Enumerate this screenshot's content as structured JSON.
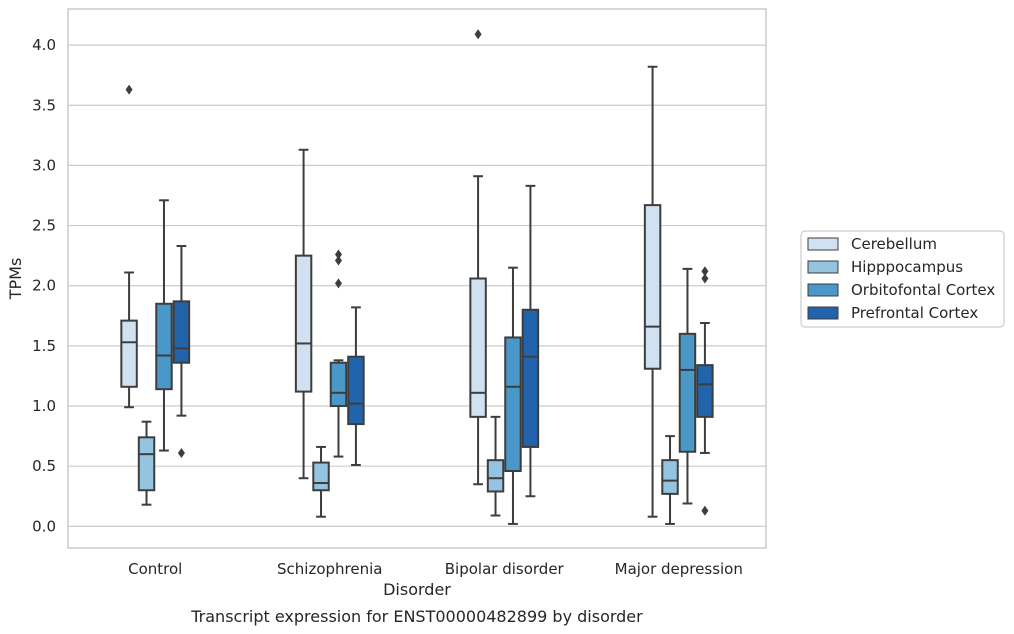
{
  "chart_data": {
    "type": "box",
    "caption": "Transcript expression for ENST00000482899 by disorder",
    "xlabel": "Disorder",
    "ylabel": "TPMs",
    "ylim": [
      -0.18,
      4.3
    ],
    "yticks": [
      "0.0",
      "0.5",
      "1.0",
      "1.5",
      "2.0",
      "2.5",
      "3.0",
      "3.5",
      "4.0"
    ],
    "grid": "horizontal",
    "legend_position": "right",
    "categories": [
      "Control",
      "Schizophrenia",
      "Bipolar disorder",
      "Major depression"
    ],
    "series": [
      {
        "name": "Cerebellum",
        "color": "#d0e1f2",
        "boxes": [
          {
            "min": 0.99,
            "q1": 1.16,
            "median": 1.53,
            "q3": 1.71,
            "max": 2.11,
            "outliers": [
              3.63
            ]
          },
          {
            "min": 0.4,
            "q1": 1.12,
            "median": 1.52,
            "q3": 2.25,
            "max": 3.13,
            "outliers": []
          },
          {
            "min": 0.35,
            "q1": 0.91,
            "median": 1.11,
            "q3": 2.06,
            "max": 2.91,
            "outliers": [
              4.09
            ]
          },
          {
            "min": 0.08,
            "q1": 1.31,
            "median": 1.66,
            "q3": 2.67,
            "max": 3.82,
            "outliers": []
          }
        ]
      },
      {
        "name": "Hipppocampus",
        "color": "#94c4df",
        "boxes": [
          {
            "min": 0.18,
            "q1": 0.3,
            "median": 0.6,
            "q3": 0.74,
            "max": 0.87,
            "outliers": []
          },
          {
            "min": 0.08,
            "q1": 0.3,
            "median": 0.36,
            "q3": 0.53,
            "max": 0.66,
            "outliers": []
          },
          {
            "min": 0.09,
            "q1": 0.29,
            "median": 0.4,
            "q3": 0.55,
            "max": 0.91,
            "outliers": []
          },
          {
            "min": 0.02,
            "q1": 0.27,
            "median": 0.38,
            "q3": 0.55,
            "max": 0.75,
            "outliers": []
          }
        ]
      },
      {
        "name": "Orbitofontal Cortex",
        "color": "#4a98c9",
        "boxes": [
          {
            "min": 0.63,
            "q1": 1.14,
            "median": 1.42,
            "q3": 1.85,
            "max": 2.71,
            "outliers": []
          },
          {
            "min": 0.58,
            "q1": 1.0,
            "median": 1.11,
            "q3": 1.36,
            "max": 1.38,
            "outliers": [
              2.02,
              2.21,
              2.26
            ]
          },
          {
            "min": 0.02,
            "q1": 0.46,
            "median": 1.16,
            "q3": 1.57,
            "max": 2.15,
            "outliers": []
          },
          {
            "min": 0.19,
            "q1": 0.62,
            "median": 1.3,
            "q3": 1.6,
            "max": 2.14,
            "outliers": []
          }
        ]
      },
      {
        "name": "Prefrontal Cortex",
        "color": "#2164ab",
        "boxes": [
          {
            "min": 0.92,
            "q1": 1.36,
            "median": 1.48,
            "q3": 1.87,
            "max": 2.33,
            "outliers": [
              0.61
            ]
          },
          {
            "min": 0.51,
            "q1": 0.85,
            "median": 1.02,
            "q3": 1.41,
            "max": 1.82,
            "outliers": []
          },
          {
            "min": 0.25,
            "q1": 0.66,
            "median": 1.41,
            "q3": 1.8,
            "max": 2.83,
            "outliers": []
          },
          {
            "min": 0.61,
            "q1": 0.91,
            "median": 1.18,
            "q3": 1.34,
            "max": 1.69,
            "outliers": [
              0.13,
              2.06,
              2.12
            ]
          }
        ]
      }
    ]
  }
}
